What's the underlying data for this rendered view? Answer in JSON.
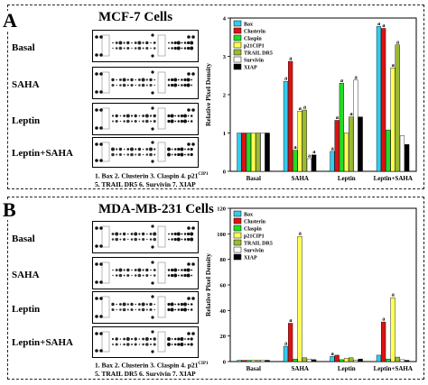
{
  "panelA": {
    "letter": "A",
    "title": "MCF-7 Cells",
    "rows": [
      "Basal",
      "SAHA",
      "Leptin",
      "Leptin+SAHA"
    ],
    "note_line1": "1. Bax  2. Clusterin  3. Claspin  4. p21",
    "note_line1_sup": "CIP1",
    "note_line2": "5. TRAIL DR5  6. Survivin  7. XIAP"
  },
  "panelB": {
    "letter": "B",
    "title": "MDA-MB-231 Cells",
    "rows": [
      "Basal",
      "SAHA",
      "Leptin",
      "Leptin+SAHA"
    ],
    "note_line1": "1. Bax  2. Clusterin  3. Claspin  4. p21",
    "note_line1_sup": "CIP1",
    "note_line2": "5. TRAIL DR5  6. Survivin  7. XIAP"
  },
  "colors": {
    "Bax": "#33ccee",
    "Clusterin": "#dd1111",
    "Claspin": "#22dd22",
    "p21": "#ffff55",
    "TRAIL DR5": "#99bb33",
    "Survivin": "#ffffff",
    "XIAP": "#000000"
  },
  "chart_data": [
    {
      "type": "bar",
      "ylabel": "Relative Pixel Density",
      "ylim": [
        0,
        4
      ],
      "yticks": [
        0,
        1,
        2,
        3,
        4
      ],
      "categories": [
        "Basal",
        "SAHA",
        "Leptin",
        "Leptin+SAHA"
      ],
      "legend": [
        "Bax",
        "Clusterin",
        "Claspin",
        "p21CIP1",
        "TRAIL DR5",
        "Survivin",
        "XIAP"
      ],
      "series": [
        {
          "name": "Bax",
          "values": [
            1.0,
            2.35,
            0.52,
            3.78
          ]
        },
        {
          "name": "Clusterin",
          "values": [
            1.0,
            2.87,
            1.33,
            3.73
          ]
        },
        {
          "name": "Claspin",
          "values": [
            1.0,
            0.55,
            2.3,
            1.08
          ]
        },
        {
          "name": "p21CIP1",
          "values": [
            1.0,
            1.57,
            1.0,
            2.7
          ]
        },
        {
          "name": "TRAIL DR5",
          "values": [
            1.0,
            1.6,
            1.42,
            3.3
          ]
        },
        {
          "name": "Survivin",
          "values": [
            1.0,
            0.33,
            2.38,
            0.93
          ]
        },
        {
          "name": "XIAP",
          "values": [
            1.0,
            0.43,
            1.42,
            0.7
          ]
        }
      ],
      "annotations": [
        {
          "category": 1,
          "series": 0,
          "text": "a"
        },
        {
          "category": 1,
          "series": 1,
          "text": "a"
        },
        {
          "category": 1,
          "series": 2,
          "text": "a"
        },
        {
          "category": 1,
          "series": 3,
          "text": "a"
        },
        {
          "category": 1,
          "series": 4,
          "text": "a"
        },
        {
          "category": 1,
          "series": 5,
          "text": "a"
        },
        {
          "category": 1,
          "series": 6,
          "text": "a"
        },
        {
          "category": 2,
          "series": 0,
          "text": "a"
        },
        {
          "category": 2,
          "series": 1,
          "text": "a"
        },
        {
          "category": 2,
          "series": 2,
          "text": "a"
        },
        {
          "category": 2,
          "series": 4,
          "text": "a"
        },
        {
          "category": 2,
          "series": 5,
          "text": "a"
        },
        {
          "category": 3,
          "series": 0,
          "text": "a"
        },
        {
          "category": 3,
          "series": 1,
          "text": "a"
        },
        {
          "category": 3,
          "series": 3,
          "text": "a"
        },
        {
          "category": 3,
          "series": 4,
          "text": "a"
        }
      ]
    },
    {
      "type": "bar",
      "ylabel": "Relative Pixel Density",
      "ylim": [
        0,
        120
      ],
      "yticks": [
        0,
        20,
        40,
        60,
        80,
        100,
        120
      ],
      "categories": [
        "Basal",
        "SAHA",
        "Leptin",
        "Leptin+SAHA"
      ],
      "legend": [
        "Bax",
        "Clusterin",
        "Claspin",
        "p21CIP1",
        "TRAIL DR5",
        "Survivin",
        "XIAP"
      ],
      "series": [
        {
          "name": "Bax",
          "values": [
            1.0,
            12.0,
            4.0,
            5.0
          ]
        },
        {
          "name": "Clusterin",
          "values": [
            1.0,
            30.0,
            5.0,
            31.0
          ]
        },
        {
          "name": "Claspin",
          "values": [
            1.0,
            2.0,
            1.5,
            2.0
          ]
        },
        {
          "name": "p21CIP1",
          "values": [
            1.0,
            98.0,
            2.5,
            50.0
          ]
        },
        {
          "name": "TRAIL DR5",
          "values": [
            1.0,
            3.0,
            3.0,
            3.5
          ]
        },
        {
          "name": "Survivin",
          "values": [
            1.0,
            2.0,
            1.0,
            1.5
          ]
        },
        {
          "name": "XIAP",
          "values": [
            1.0,
            1.5,
            2.0,
            1.0
          ]
        }
      ],
      "annotations": [
        {
          "category": 1,
          "series": 0,
          "text": "a"
        },
        {
          "category": 1,
          "series": 1,
          "text": "a"
        },
        {
          "category": 1,
          "series": 3,
          "text": "a"
        },
        {
          "category": 2,
          "series": 0,
          "text": "a"
        },
        {
          "category": 3,
          "series": 1,
          "text": "a"
        },
        {
          "category": 3,
          "series": 3,
          "text": "a"
        }
      ]
    }
  ]
}
